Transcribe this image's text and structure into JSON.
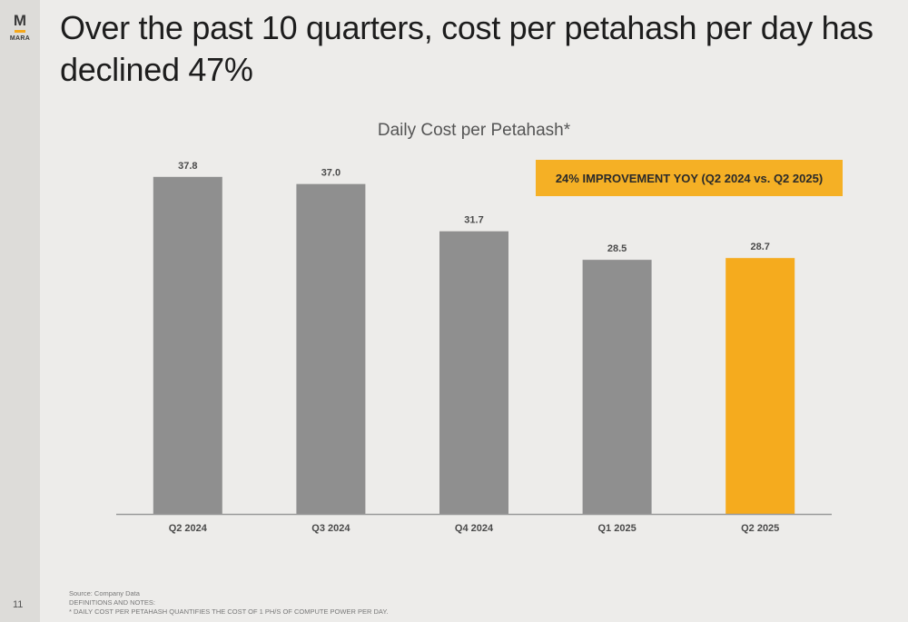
{
  "logo": {
    "mark": "M",
    "name": "MARA"
  },
  "page_number": "11",
  "title": "Over the past 10 quarters, cost per petahash per day has declined 47%",
  "callout": "24% IMPROVEMENT YOY (Q2 2024 vs. Q2 2025)",
  "footer": {
    "source": "Source: Company Data",
    "definitions": "DEFINITIONS AND NOTES:",
    "note": "* DAILY COST PER PETAHASH QUANTIFIES THE COST OF 1 PH/S OF COMPUTE POWER PER DAY."
  },
  "colors": {
    "bar_default": "#8f8f8f",
    "bar_highlight": "#f5ab1e",
    "axis": "#9a9a9a",
    "label": "#4a4a4a"
  },
  "chart_data": {
    "type": "bar",
    "title": "Daily Cost per Petahash*",
    "categories": [
      "Q2 2024",
      "Q3 2024",
      "Q4 2024",
      "Q1 2025",
      "Q2 2025"
    ],
    "values": [
      37.8,
      37.0,
      31.7,
      28.5,
      28.7
    ],
    "value_labels": [
      "37.8",
      "37.0",
      "31.7",
      "28.5",
      "28.7"
    ],
    "highlight": [
      "Q2 2025"
    ],
    "xlabel": "",
    "ylabel": "",
    "ylim": [
      0,
      40
    ],
    "grid": false
  }
}
